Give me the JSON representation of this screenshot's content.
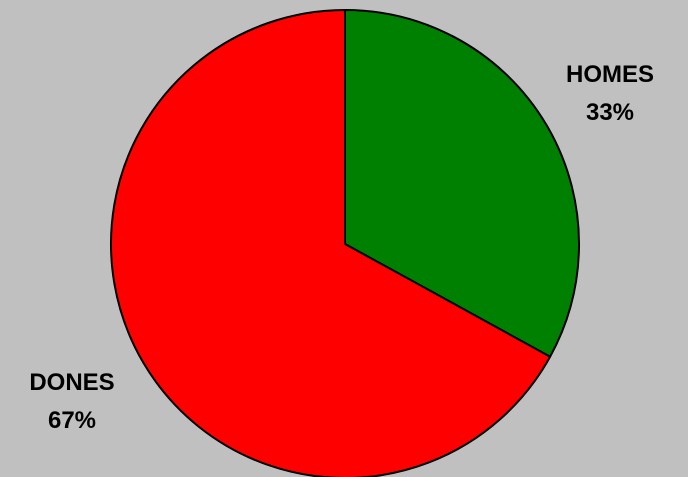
{
  "chart_data": {
    "type": "pie",
    "title": "",
    "slices": [
      {
        "label": "HOMES",
        "value": 33,
        "display": "33%",
        "color": "#008000"
      },
      {
        "label": "DONES",
        "value": 67,
        "display": "67%",
        "color": "#ff0000"
      }
    ],
    "start_angle_deg": 0,
    "direction": "clockwise",
    "outline_color": "#000000",
    "background": "#c0c0c0",
    "legend": "none",
    "labels_outside": true
  }
}
